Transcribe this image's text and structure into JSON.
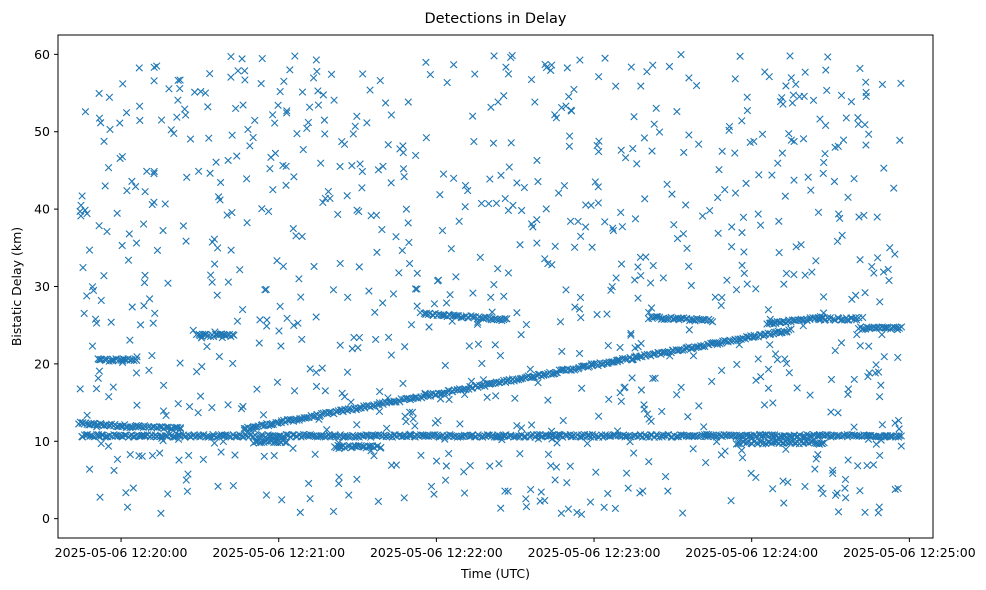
{
  "chart_data": {
    "type": "scatter",
    "title": "Detections in Delay",
    "xlabel": "Time (UTC)",
    "ylabel": "Bistatic Delay (km)",
    "marker": "x",
    "color": "#1f77b4",
    "x_unit": "minutes after 2025-05-06 12:20:00",
    "xlim": [
      -0.4,
      5.15
    ],
    "ylim": [
      -2.5,
      62.5
    ],
    "grid": false,
    "x_ticks": [
      {
        "value": 0,
        "label": "2025-05-06 12:20:00"
      },
      {
        "value": 1,
        "label": "2025-05-06 12:21:00"
      },
      {
        "value": 2,
        "label": "2025-05-06 12:22:00"
      },
      {
        "value": 3,
        "label": "2025-05-06 12:23:00"
      },
      {
        "value": 4,
        "label": "2025-05-06 12:24:00"
      },
      {
        "value": 5,
        "label": "2025-05-06 12:25:00"
      }
    ],
    "y_ticks": [
      0,
      10,
      20,
      30,
      40,
      50,
      60
    ],
    "tracks": [
      {
        "name": "main target track (early)",
        "x_range": [
          -0.27,
          0.38
        ],
        "delay_km": [
          12.3,
          11.6
        ]
      },
      {
        "name": "main target track (rising)",
        "x_range": [
          0.78,
          3.15
        ],
        "delay_km": [
          11.6,
          20.4
        ]
      },
      {
        "name": "main target track (late)",
        "x_range": [
          3.15,
          4.25
        ],
        "delay_km": [
          20.4,
          24.4
        ]
      },
      {
        "name": "target track 2",
        "x_range": [
          1.92,
          2.45
        ],
        "delay_km": [
          26.5,
          25.7
        ]
      },
      {
        "name": "target track 3",
        "x_range": [
          3.35,
          3.75
        ],
        "delay_km": [
          26.0,
          25.6
        ]
      },
      {
        "name": "target track 4",
        "x_range": [
          4.1,
          4.45
        ],
        "delay_km": [
          25.2,
          26.0
        ]
      },
      {
        "name": "clutter band",
        "x_range": [
          -0.25,
          4.95
        ],
        "delay_km": [
          10.7,
          10.7
        ]
      },
      {
        "name": "band segment",
        "x_range": [
          0.48,
          0.72
        ],
        "delay_km": [
          23.7,
          23.7
        ]
      },
      {
        "name": "band segment",
        "x_range": [
          4.68,
          4.95
        ],
        "delay_km": [
          24.6,
          24.6
        ]
      },
      {
        "name": "band segment",
        "x_range": [
          4.42,
          4.68
        ],
        "delay_km": [
          25.8,
          25.8
        ]
      },
      {
        "name": "band segment",
        "x_range": [
          -0.15,
          0.1
        ],
        "delay_km": [
          20.5,
          20.5
        ]
      },
      {
        "name": "band segment",
        "x_range": [
          0.85,
          1.05
        ],
        "delay_km": [
          10.0,
          10.0
        ]
      },
      {
        "name": "band segment",
        "x_range": [
          1.35,
          1.65
        ],
        "delay_km": [
          9.3,
          9.3
        ]
      },
      {
        "name": "band segment",
        "x_range": [
          3.9,
          4.45
        ],
        "delay_km": [
          9.8,
          9.8
        ]
      }
    ],
    "noise_points": 900,
    "noise_delay_range_km": [
      0.5,
      60
    ],
    "noise_time_range": [
      -0.27,
      4.95
    ]
  }
}
